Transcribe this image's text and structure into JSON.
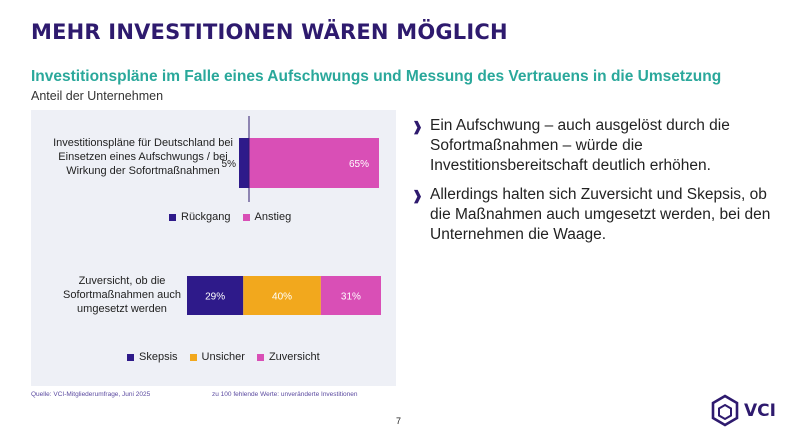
{
  "title": "MEHR INVESTITIONEN WÄREN MÖGLICH",
  "subtitle": "Investitionspläne im Falle eines Aufschwungs und Messung des Vertrauens in die Umsetzung",
  "unit_label": "Anteil der Unternehmen",
  "chart_data": [
    {
      "type": "bar",
      "orientation": "horizontal",
      "layout": "diverging",
      "category": "Investitionspläne für Deutschland bei Einsetzen eines Aufschwungs / bei Wirkung der Sofortmaßnahmen",
      "series": [
        {
          "name": "Rückgang",
          "value": 5,
          "label": "5%",
          "color": "#2e1a8a"
        },
        {
          "name": "Anstieg",
          "value": 65,
          "label": "65%",
          "color": "#d94fb6"
        }
      ]
    },
    {
      "type": "bar",
      "orientation": "horizontal",
      "layout": "stacked",
      "category": "Zuversicht, ob die Sofortmaßnahmen auch umgesetzt werden",
      "series": [
        {
          "name": "Skepsis",
          "value": 29,
          "label": "29%",
          "color": "#2e1a8a"
        },
        {
          "name": "Unsicher",
          "value": 40,
          "label": "40%",
          "color": "#f2a81d"
        },
        {
          "name": "Zuversicht",
          "value": 31,
          "label": "31%",
          "color": "#d94fb6"
        }
      ]
    }
  ],
  "footer": {
    "source": "Quelle: VCI-Mitgliederumfrage, Juni 2025",
    "note": "zu 100 fehlende Werte: unveränderte Investitionen"
  },
  "page_number": "7",
  "bullets": [
    "Ein Aufschwung – auch ausgelöst durch die Sofortmaßnahmen – würde die Investitionsbereitschaft deutlich erhöhen.",
    "Allerdings halten sich Zuversicht und Skepsis, ob die Maßnahmen auch umgesetzt werden, bei den Unternehmen die Waage."
  ],
  "logo_text": "VCI",
  "colors": {
    "title": "#2e1a6e",
    "subtitle": "#2aa89b",
    "panel": "#eef0f6"
  }
}
